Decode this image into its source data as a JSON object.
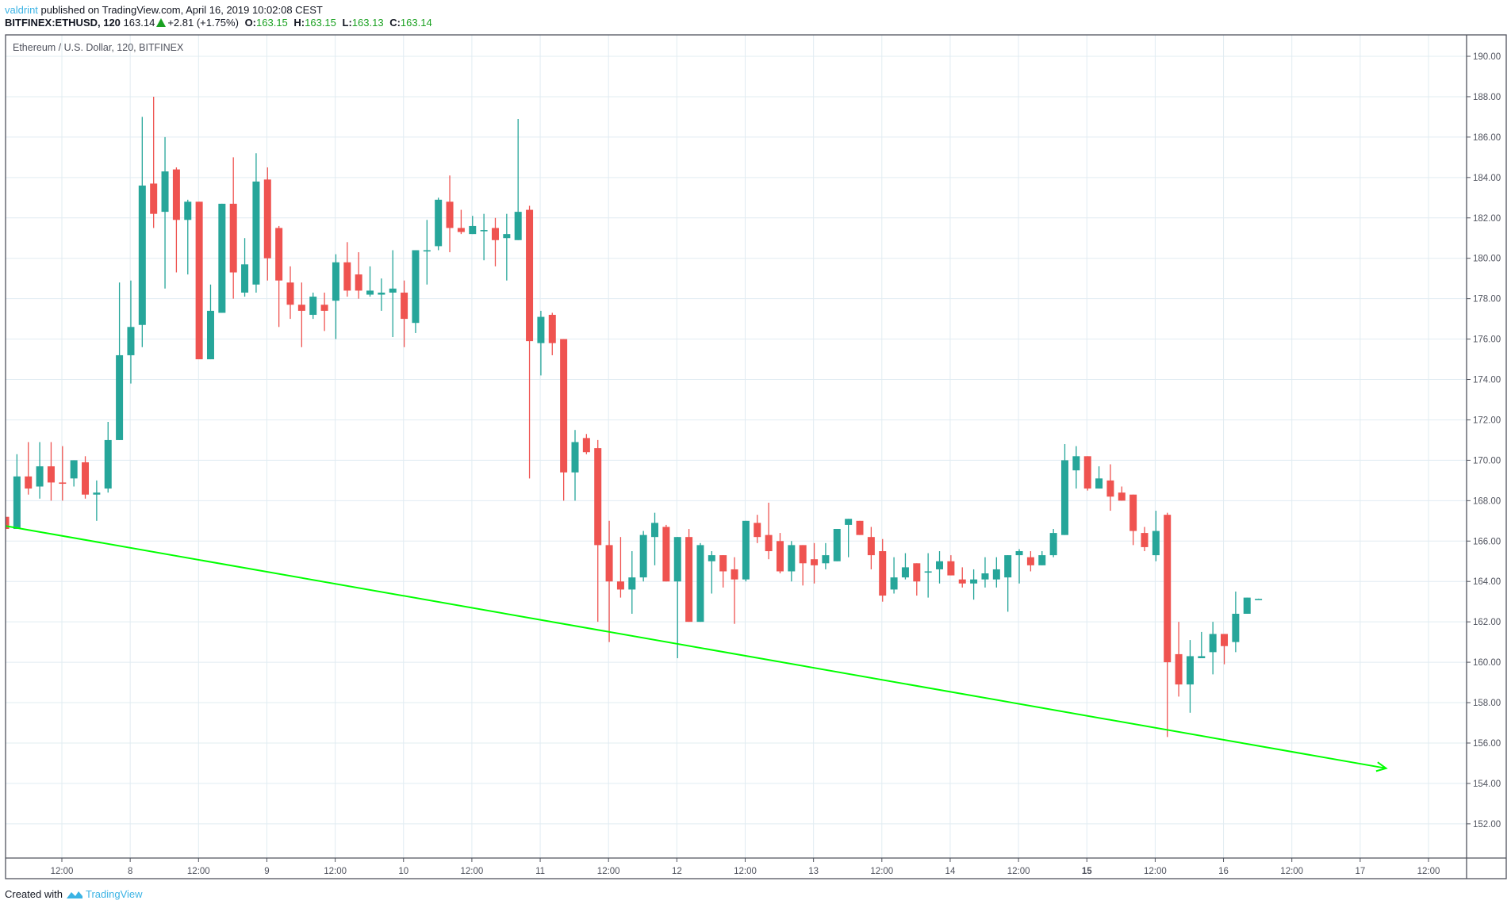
{
  "header": {
    "author": "valdrint",
    "published_text": " published on TradingView.com, April 16, 2019 10:02:08 CEST",
    "symbol": "BITFINEX:ETHUSD, 120",
    "last_price": "163.14",
    "change": "+2.81 (+1.75%)",
    "open_label": "O:",
    "open": "163.15",
    "high_label": "H:",
    "high": "163.15",
    "low_label": "L:",
    "low": "163.13",
    "close_label": "C:",
    "close": "163.14"
  },
  "footer": {
    "created_with": "Created with",
    "brand": "TradingView"
  },
  "colors": {
    "up": "#26a69a",
    "down": "#ef5350",
    "grid": "#e1ecf2",
    "axis": "#50535e",
    "trendline": "#00ff00",
    "text": "#50535e"
  },
  "chart_data": {
    "type": "candlestick",
    "title": "Ethereum / U.S. Dollar, 120, BITFINEX",
    "interval_minutes": 120,
    "ylabel": "",
    "xlabel": "",
    "ylim": [
      150.5,
      191.1
    ],
    "y_ticks": [
      "190.00",
      "188.00",
      "186.00",
      "184.00",
      "182.00",
      "180.00",
      "178.00",
      "176.00",
      "174.00",
      "172.00",
      "170.00",
      "168.00",
      "166.00",
      "164.00",
      "162.00",
      "160.00",
      "158.00",
      "156.00",
      "154.00",
      "152.00"
    ],
    "x_ticks": [
      "12:00",
      "8",
      "12:00",
      "9",
      "12:00",
      "10",
      "12:00",
      "11",
      "12:00",
      "12",
      "12:00",
      "13",
      "12:00",
      "14",
      "12:00",
      "15",
      "12:00",
      "16",
      "12:00",
      "17",
      "12:00"
    ],
    "grid": true,
    "candles": [
      [
        167.2,
        167.2,
        166.6,
        166.6
      ],
      [
        166.6,
        170.3,
        166.6,
        169.2
      ],
      [
        169.2,
        170.9,
        168.3,
        168.6
      ],
      [
        168.7,
        170.9,
        168.1,
        169.7
      ],
      [
        169.7,
        170.9,
        168.0,
        168.9
      ],
      [
        168.9,
        170.7,
        168.0,
        168.85
      ],
      [
        169.1,
        170.0,
        168.7,
        170.0
      ],
      [
        169.9,
        170.2,
        168.1,
        168.3
      ],
      [
        168.3,
        169.0,
        167.0,
        168.4
      ],
      [
        168.6,
        171.9,
        168.4,
        171.0
      ],
      [
        171.0,
        178.8,
        171.0,
        175.2
      ],
      [
        175.2,
        178.9,
        173.8,
        176.6
      ],
      [
        176.7,
        187.0,
        175.6,
        183.6
      ],
      [
        183.7,
        188.0,
        181.5,
        182.2
      ],
      [
        182.3,
        186.0,
        178.5,
        184.3
      ],
      [
        184.4,
        184.5,
        179.3,
        181.9
      ],
      [
        181.9,
        182.9,
        179.2,
        182.8
      ],
      [
        182.8,
        182.8,
        175.0,
        175.0
      ],
      [
        175.0,
        178.7,
        175.0,
        177.4
      ],
      [
        177.3,
        182.7,
        177.3,
        182.7
      ],
      [
        182.7,
        185.0,
        178.0,
        179.3
      ],
      [
        178.3,
        181.0,
        178.1,
        179.7
      ],
      [
        178.7,
        185.2,
        178.3,
        183.8
      ],
      [
        183.9,
        184.5,
        178.9,
        180.0
      ],
      [
        181.5,
        181.6,
        176.6,
        178.9
      ],
      [
        178.8,
        179.6,
        177.0,
        177.7
      ],
      [
        177.7,
        178.8,
        175.6,
        177.4
      ],
      [
        177.2,
        178.3,
        177.0,
        178.1
      ],
      [
        177.7,
        178.3,
        176.4,
        177.4
      ],
      [
        177.9,
        180.2,
        176.0,
        179.8
      ],
      [
        179.8,
        180.8,
        178.1,
        178.4
      ],
      [
        179.2,
        180.3,
        178.0,
        178.4
      ],
      [
        178.2,
        179.6,
        178.1,
        178.4
      ],
      [
        178.2,
        179.0,
        177.4,
        178.3
      ],
      [
        178.3,
        180.4,
        176.1,
        178.5
      ],
      [
        178.3,
        178.9,
        175.6,
        177.0
      ],
      [
        176.8,
        180.0,
        176.3,
        180.4
      ],
      [
        180.4,
        181.9,
        178.7,
        180.4
      ],
      [
        180.6,
        183.0,
        180.4,
        182.9
      ],
      [
        182.8,
        184.1,
        180.3,
        181.5
      ],
      [
        181.5,
        182.4,
        181.2,
        181.3
      ],
      [
        181.2,
        182.1,
        181.2,
        181.6
      ],
      [
        181.4,
        182.2,
        179.9,
        181.4
      ],
      [
        181.5,
        182.0,
        179.6,
        180.9
      ],
      [
        181.0,
        182.2,
        178.9,
        181.2
      ],
      [
        180.9,
        186.9,
        180.9,
        182.3
      ],
      [
        182.4,
        182.6,
        169.1,
        175.9
      ],
      [
        175.8,
        177.4,
        174.2,
        177.1
      ],
      [
        177.2,
        177.3,
        175.2,
        175.8
      ],
      [
        176.0,
        176.0,
        168.0,
        169.4
      ],
      [
        169.4,
        171.5,
        168.0,
        170.9
      ],
      [
        171.1,
        171.3,
        170.3,
        170.4
      ],
      [
        170.6,
        171.0,
        162.0,
        165.8
      ],
      [
        165.8,
        167.0,
        161.0,
        164.0
      ],
      [
        164.0,
        166.2,
        163.2,
        163.6
      ],
      [
        163.6,
        165.5,
        162.4,
        164.2
      ],
      [
        164.2,
        166.5,
        164.0,
        166.3
      ],
      [
        166.2,
        167.4,
        164.8,
        166.9
      ],
      [
        166.7,
        166.8,
        164.6,
        164.0
      ],
      [
        164.0,
        166.2,
        160.2,
        166.2
      ],
      [
        166.2,
        166.6,
        162.2,
        162.0
      ],
      [
        162.0,
        165.9,
        162.0,
        165.8
      ],
      [
        165.0,
        165.5,
        163.4,
        165.3
      ],
      [
        165.3,
        165.2,
        163.7,
        164.5
      ],
      [
        164.6,
        165.2,
        161.9,
        164.1
      ],
      [
        164.1,
        167.0,
        164.0,
        167.0
      ],
      [
        166.9,
        167.3,
        165.9,
        166.2
      ],
      [
        166.3,
        167.9,
        165.1,
        165.5
      ],
      [
        166.0,
        166.4,
        164.4,
        164.5
      ],
      [
        164.5,
        166.0,
        164.0,
        165.8
      ],
      [
        165.8,
        165.3,
        163.8,
        164.9
      ],
      [
        165.1,
        165.9,
        163.9,
        164.8
      ],
      [
        164.9,
        165.9,
        164.6,
        165.3
      ],
      [
        165.0,
        166.6,
        165.0,
        166.6
      ],
      [
        166.8,
        167.1,
        165.2,
        167.1
      ],
      [
        167.0,
        166.9,
        166.4,
        166.3
      ],
      [
        166.2,
        166.7,
        164.6,
        165.3
      ],
      [
        165.5,
        166.1,
        163.0,
        163.3
      ],
      [
        163.6,
        165.2,
        163.4,
        164.2
      ],
      [
        164.2,
        165.4,
        164.1,
        164.7
      ],
      [
        164.9,
        164.7,
        163.3,
        164.0
      ],
      [
        164.5,
        165.4,
        163.2,
        164.5
      ],
      [
        164.6,
        165.5,
        163.9,
        165.0
      ],
      [
        165.0,
        165.3,
        164.4,
        164.3
      ],
      [
        164.1,
        164.7,
        163.7,
        163.9
      ],
      [
        163.9,
        164.6,
        163.1,
        164.1
      ],
      [
        164.1,
        165.2,
        163.7,
        164.4
      ],
      [
        164.1,
        165.2,
        163.7,
        164.6
      ],
      [
        164.2,
        165.3,
        162.5,
        165.3
      ],
      [
        165.3,
        165.6,
        163.9,
        165.5
      ],
      [
        165.2,
        165.5,
        164.5,
        164.8
      ],
      [
        164.8,
        165.5,
        164.8,
        165.3
      ],
      [
        165.3,
        166.6,
        165.2,
        166.4
      ],
      [
        166.3,
        170.8,
        166.3,
        170.0
      ],
      [
        169.5,
        170.7,
        168.6,
        170.2
      ],
      [
        170.2,
        170.1,
        168.5,
        168.6
      ],
      [
        168.6,
        169.7,
        168.6,
        169.1
      ],
      [
        169.0,
        169.8,
        167.5,
        168.2
      ],
      [
        168.4,
        168.7,
        168.0,
        168.0
      ],
      [
        168.3,
        168.3,
        165.8,
        166.5
      ],
      [
        166.4,
        166.7,
        165.5,
        165.7
      ],
      [
        165.3,
        167.5,
        165.0,
        166.5
      ],
      [
        167.3,
        167.4,
        156.3,
        160.0
      ],
      [
        160.4,
        162.0,
        158.3,
        158.9
      ],
      [
        158.9,
        161.1,
        157.5,
        160.3
      ],
      [
        160.2,
        161.5,
        160.2,
        160.3
      ],
      [
        160.5,
        162.0,
        159.4,
        161.4
      ],
      [
        161.4,
        161.4,
        159.9,
        160.8
      ],
      [
        161.0,
        163.5,
        160.5,
        162.4
      ],
      [
        162.4,
        163.2,
        162.4,
        163.2
      ],
      [
        163.14,
        163.15,
        163.13,
        163.14
      ]
    ],
    "trendline": {
      "start": [
        0,
        166.75
      ],
      "end": [
        121.2,
        154.75
      ],
      "arrow": true
    }
  }
}
